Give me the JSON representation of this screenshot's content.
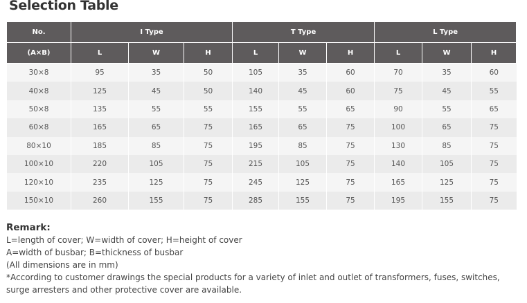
{
  "title": "Selection Table",
  "header": {
    "no": "No.",
    "ab": "(A×B)",
    "types": [
      "I Type",
      "T Type",
      "L Type"
    ],
    "dims": [
      "L",
      "W",
      "H"
    ]
  },
  "rows": [
    [
      "30×8",
      "95",
      "35",
      "50",
      "105",
      "35",
      "60",
      "70",
      "35",
      "60"
    ],
    [
      "40×8",
      "125",
      "45",
      "50",
      "140",
      "45",
      "60",
      "75",
      "45",
      "55"
    ],
    [
      "50×8",
      "135",
      "55",
      "55",
      "155",
      "55",
      "65",
      "90",
      "55",
      "65"
    ],
    [
      "60×8",
      "165",
      "65",
      "75",
      "165",
      "65",
      "75",
      "100",
      "65",
      "75"
    ],
    [
      "80×10",
      "185",
      "85",
      "75",
      "195",
      "85",
      "75",
      "130",
      "85",
      "75"
    ],
    [
      "100×10",
      "220",
      "105",
      "75",
      "215",
      "105",
      "75",
      "140",
      "105",
      "75"
    ],
    [
      "120×10",
      "235",
      "125",
      "75",
      "245",
      "125",
      "75",
      "165",
      "125",
      "75"
    ],
    [
      "150×10",
      "260",
      "155",
      "75",
      "285",
      "155",
      "75",
      "195",
      "155",
      "75"
    ]
  ],
  "remark": {
    "title": "Remark:",
    "lines": [
      "L=length of cover; W=width of cover; H=height of cover",
      "A=width of busbar; B=thickness of busbar",
      "(All dimensions are in mm)",
      "*According to customer drawings the special products for a variety of inlet and outlet of transformers, fuses, switches, surge arresters and other protective cover  are available."
    ]
  }
}
